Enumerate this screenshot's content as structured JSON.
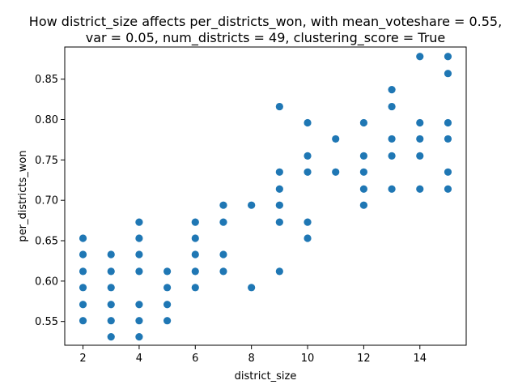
{
  "chart_data": {
    "type": "scatter",
    "title_lines": [
      "How district_size affects per_districts_won, with mean_voteshare = 0.55,",
      "var = 0.05, num_districts = 49, clustering_score = True"
    ],
    "xlabel": "district_size",
    "ylabel": "per_districts_won",
    "xlim": [
      1.35,
      15.65
    ],
    "ylim": [
      0.5206,
      0.8898
    ],
    "xticks": [
      2,
      4,
      6,
      8,
      10,
      12,
      14
    ],
    "yticks": [
      0.55,
      0.6,
      0.65,
      0.7,
      0.75,
      0.8,
      0.85
    ],
    "xtick_labels": [
      "2",
      "4",
      "6",
      "8",
      "10",
      "12",
      "14"
    ],
    "ytick_labels": [
      "0.55",
      "0.60",
      "0.65",
      "0.70",
      "0.75",
      "0.80",
      "0.85"
    ],
    "grid": false,
    "marker_color": "#1f77b4",
    "points": [
      [
        2,
        0.653
      ],
      [
        2,
        0.633
      ],
      [
        2,
        0.612
      ],
      [
        2,
        0.592
      ],
      [
        2,
        0.571
      ],
      [
        2,
        0.551
      ],
      [
        3,
        0.633
      ],
      [
        3,
        0.612
      ],
      [
        3,
        0.592
      ],
      [
        3,
        0.571
      ],
      [
        3,
        0.551
      ],
      [
        3,
        0.531
      ],
      [
        4,
        0.673
      ],
      [
        4,
        0.653
      ],
      [
        4,
        0.633
      ],
      [
        4,
        0.612
      ],
      [
        4,
        0.571
      ],
      [
        4,
        0.551
      ],
      [
        4,
        0.531
      ],
      [
        5,
        0.612
      ],
      [
        5,
        0.592
      ],
      [
        5,
        0.571
      ],
      [
        5,
        0.551
      ],
      [
        6,
        0.673
      ],
      [
        6,
        0.653
      ],
      [
        6,
        0.633
      ],
      [
        6,
        0.612
      ],
      [
        6,
        0.592
      ],
      [
        7,
        0.694
      ],
      [
        7,
        0.673
      ],
      [
        7,
        0.633
      ],
      [
        7,
        0.612
      ],
      [
        8,
        0.694
      ],
      [
        8,
        0.592
      ],
      [
        9,
        0.816
      ],
      [
        9,
        0.735
      ],
      [
        9,
        0.714
      ],
      [
        9,
        0.694
      ],
      [
        9,
        0.673
      ],
      [
        9,
        0.612
      ],
      [
        10,
        0.796
      ],
      [
        10,
        0.755
      ],
      [
        10,
        0.735
      ],
      [
        10,
        0.673
      ],
      [
        10,
        0.653
      ],
      [
        11,
        0.776
      ],
      [
        11,
        0.735
      ],
      [
        12,
        0.796
      ],
      [
        12,
        0.755
      ],
      [
        12,
        0.735
      ],
      [
        12,
        0.714
      ],
      [
        12,
        0.694
      ],
      [
        13,
        0.837
      ],
      [
        13,
        0.816
      ],
      [
        13,
        0.776
      ],
      [
        13,
        0.755
      ],
      [
        13,
        0.714
      ],
      [
        14,
        0.878
      ],
      [
        14,
        0.796
      ],
      [
        14,
        0.776
      ],
      [
        14,
        0.755
      ],
      [
        14,
        0.714
      ],
      [
        15,
        0.878
      ],
      [
        15,
        0.857
      ],
      [
        15,
        0.796
      ],
      [
        15,
        0.776
      ],
      [
        15,
        0.735
      ],
      [
        15,
        0.714
      ]
    ]
  }
}
